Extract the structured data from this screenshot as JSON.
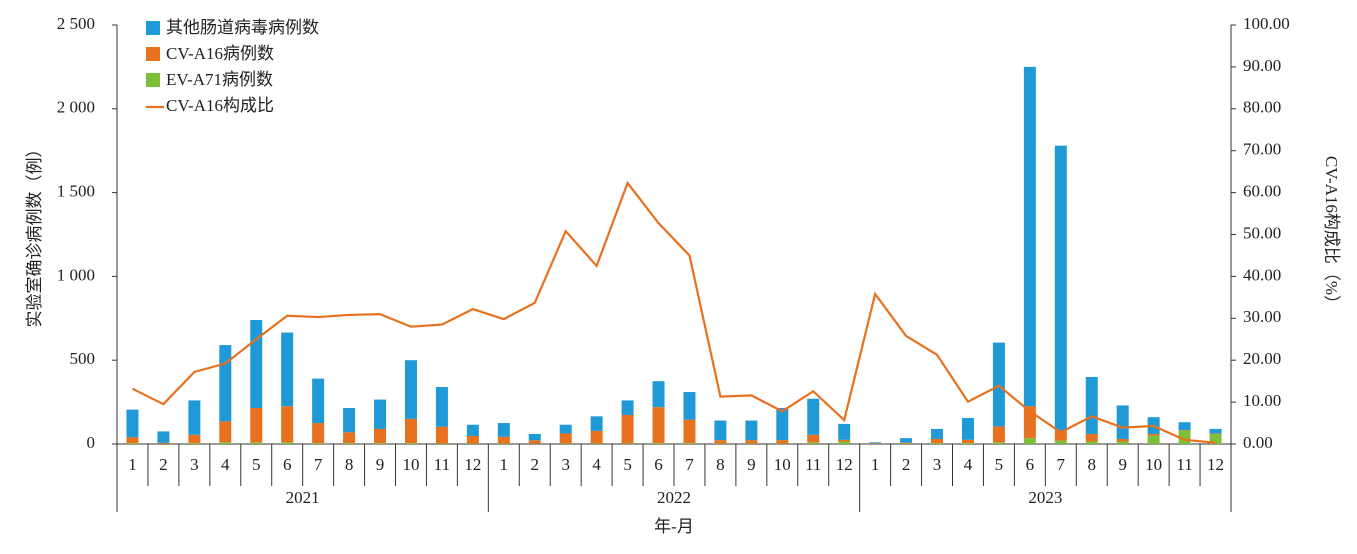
{
  "chart_data": {
    "type": "bar",
    "stacked": true,
    "x_label": "年-月",
    "y_label": "实验室确诊病例数（例）",
    "y2_label": "CV-A16构成比（%）",
    "years": [
      "2021",
      "2022",
      "2023"
    ],
    "categories": [
      "1",
      "2",
      "3",
      "4",
      "5",
      "6",
      "7",
      "8",
      "9",
      "10",
      "11",
      "12",
      "1",
      "2",
      "3",
      "4",
      "5",
      "6",
      "7",
      "8",
      "9",
      "10",
      "11",
      "12",
      "1",
      "2",
      "3",
      "4",
      "5",
      "6",
      "7",
      "8",
      "9",
      "10",
      "11",
      "12"
    ],
    "ylim": [
      0,
      2500
    ],
    "yticks": [
      0,
      500,
      {
        "value": 1000,
        "label": "1 000"
      },
      {
        "value": 1500,
        "label": "1 500"
      },
      {
        "value": 2000,
        "label": "2 000"
      },
      {
        "value": 2500,
        "label": "2 500"
      }
    ],
    "y2lim": [
      0,
      100
    ],
    "y2ticks": [
      {
        "value": 0,
        "label": "0.00"
      },
      {
        "value": 10,
        "label": "10.00"
      },
      {
        "value": 20,
        "label": "20.00"
      },
      {
        "value": 30,
        "label": "30.00"
      },
      {
        "value": 40,
        "label": "40.00"
      },
      {
        "value": 50,
        "label": "50.00"
      },
      {
        "value": 60,
        "label": "60.00"
      },
      {
        "value": 70,
        "label": "70.00"
      },
      {
        "value": 80,
        "label": "80.00"
      },
      {
        "value": 90,
        "label": "90.00"
      },
      {
        "value": 100,
        "label": "100.00"
      }
    ],
    "legend": "top-left",
    "series": [
      {
        "name": "其他肠道病毒病例数",
        "color": "#1f9ad6",
        "type": "bar",
        "values": [
          165,
          68,
          205,
          455,
          525,
          440,
          265,
          145,
          175,
          350,
          237,
          67,
          82,
          38,
          52,
          87,
          87,
          155,
          165,
          117,
          117,
          192,
          215,
          95,
          5,
          27,
          60,
          130,
          500,
          2025,
          1700,
          340,
          200,
          100,
          47,
          27
        ]
      },
      {
        "name": "CV-A16病例数",
        "color": "#e8711f",
        "type": "bar",
        "values": [
          35,
          5,
          50,
          125,
          205,
          215,
          120,
          65,
          85,
          145,
          100,
          45,
          40,
          20,
          60,
          75,
          170,
          215,
          140,
          20,
          20,
          20,
          45,
          10,
          3,
          5,
          25,
          20,
          95,
          190,
          60,
          45,
          15,
          10,
          3,
          3
        ]
      },
      {
        "name": "EV-A71病例数",
        "color": "#7cbf3a",
        "type": "bar",
        "values": [
          5,
          2,
          5,
          10,
          10,
          10,
          5,
          5,
          5,
          5,
          3,
          3,
          3,
          2,
          3,
          3,
          3,
          5,
          5,
          3,
          3,
          3,
          10,
          15,
          2,
          3,
          5,
          5,
          10,
          35,
          20,
          15,
          15,
          50,
          80,
          60
        ]
      },
      {
        "name": "CV-A16构成比",
        "color": "#e8711f",
        "type": "line",
        "axis": "y2",
        "values": [
          13.2,
          9.5,
          17.2,
          19.2,
          25,
          30.6,
          30.3,
          30.8,
          31,
          28,
          28.5,
          32.2,
          29.8,
          33.7,
          50.8,
          42.5,
          62.3,
          52.7,
          45,
          11.3,
          11.6,
          7.8,
          12.6,
          5.7,
          35.8,
          25.8,
          21.3,
          10.1,
          13.9,
          7.8,
          2.8,
          6.6,
          3.9,
          4.3,
          1,
          0.3
        ]
      }
    ]
  }
}
